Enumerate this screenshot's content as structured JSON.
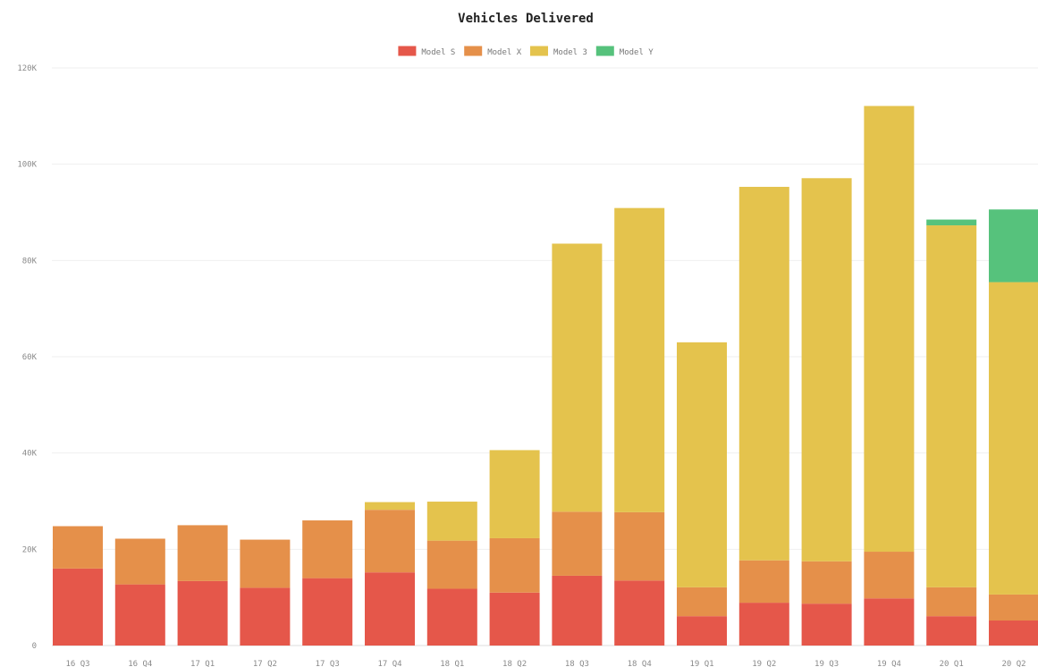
{
  "chart_data": {
    "type": "bar",
    "stacked": true,
    "title": "Vehicles Delivered",
    "xlabel": "",
    "ylabel": "",
    "ylim": [
      0,
      120000
    ],
    "grid": true,
    "legend_position": "top-center",
    "y_ticks": [
      0,
      20000,
      40000,
      60000,
      80000,
      100000,
      120000
    ],
    "y_tick_labels": [
      "0",
      "20K",
      "40K",
      "60K",
      "80K",
      "100K",
      "120K"
    ],
    "categories": [
      "16 Q3",
      "16 Q4",
      "17 Q1",
      "17 Q2",
      "17 Q3",
      "17 Q4",
      "18 Q1",
      "18 Q2",
      "18 Q3",
      "18 Q4",
      "19 Q1",
      "19 Q2",
      "19 Q3",
      "19 Q4",
      "20 Q1",
      "20 Q2"
    ],
    "series": [
      {
        "name": "Model S",
        "color": "#e5574a",
        "values": [
          16000,
          12700,
          13400,
          12000,
          14000,
          15200,
          11800,
          11000,
          14500,
          13500,
          6100,
          8900,
          8700,
          9800,
          6100,
          5200
        ]
      },
      {
        "name": "Model X",
        "color": "#e5904a",
        "values": [
          8800,
          9500,
          11600,
          10000,
          12000,
          13000,
          10000,
          11300,
          13300,
          14200,
          6000,
          8800,
          8800,
          9700,
          6000,
          5400
        ]
      },
      {
        "name": "Model 3",
        "color": "#e4c34d",
        "values": [
          0,
          0,
          0,
          0,
          0,
          1600,
          8100,
          18300,
          55700,
          63200,
          50900,
          77600,
          79600,
          92600,
          75200,
          64900
        ]
      },
      {
        "name": "Model Y",
        "color": "#56c27c",
        "values": [
          0,
          0,
          0,
          0,
          0,
          0,
          0,
          0,
          0,
          0,
          0,
          0,
          0,
          0,
          1200,
          15100
        ]
      }
    ]
  }
}
